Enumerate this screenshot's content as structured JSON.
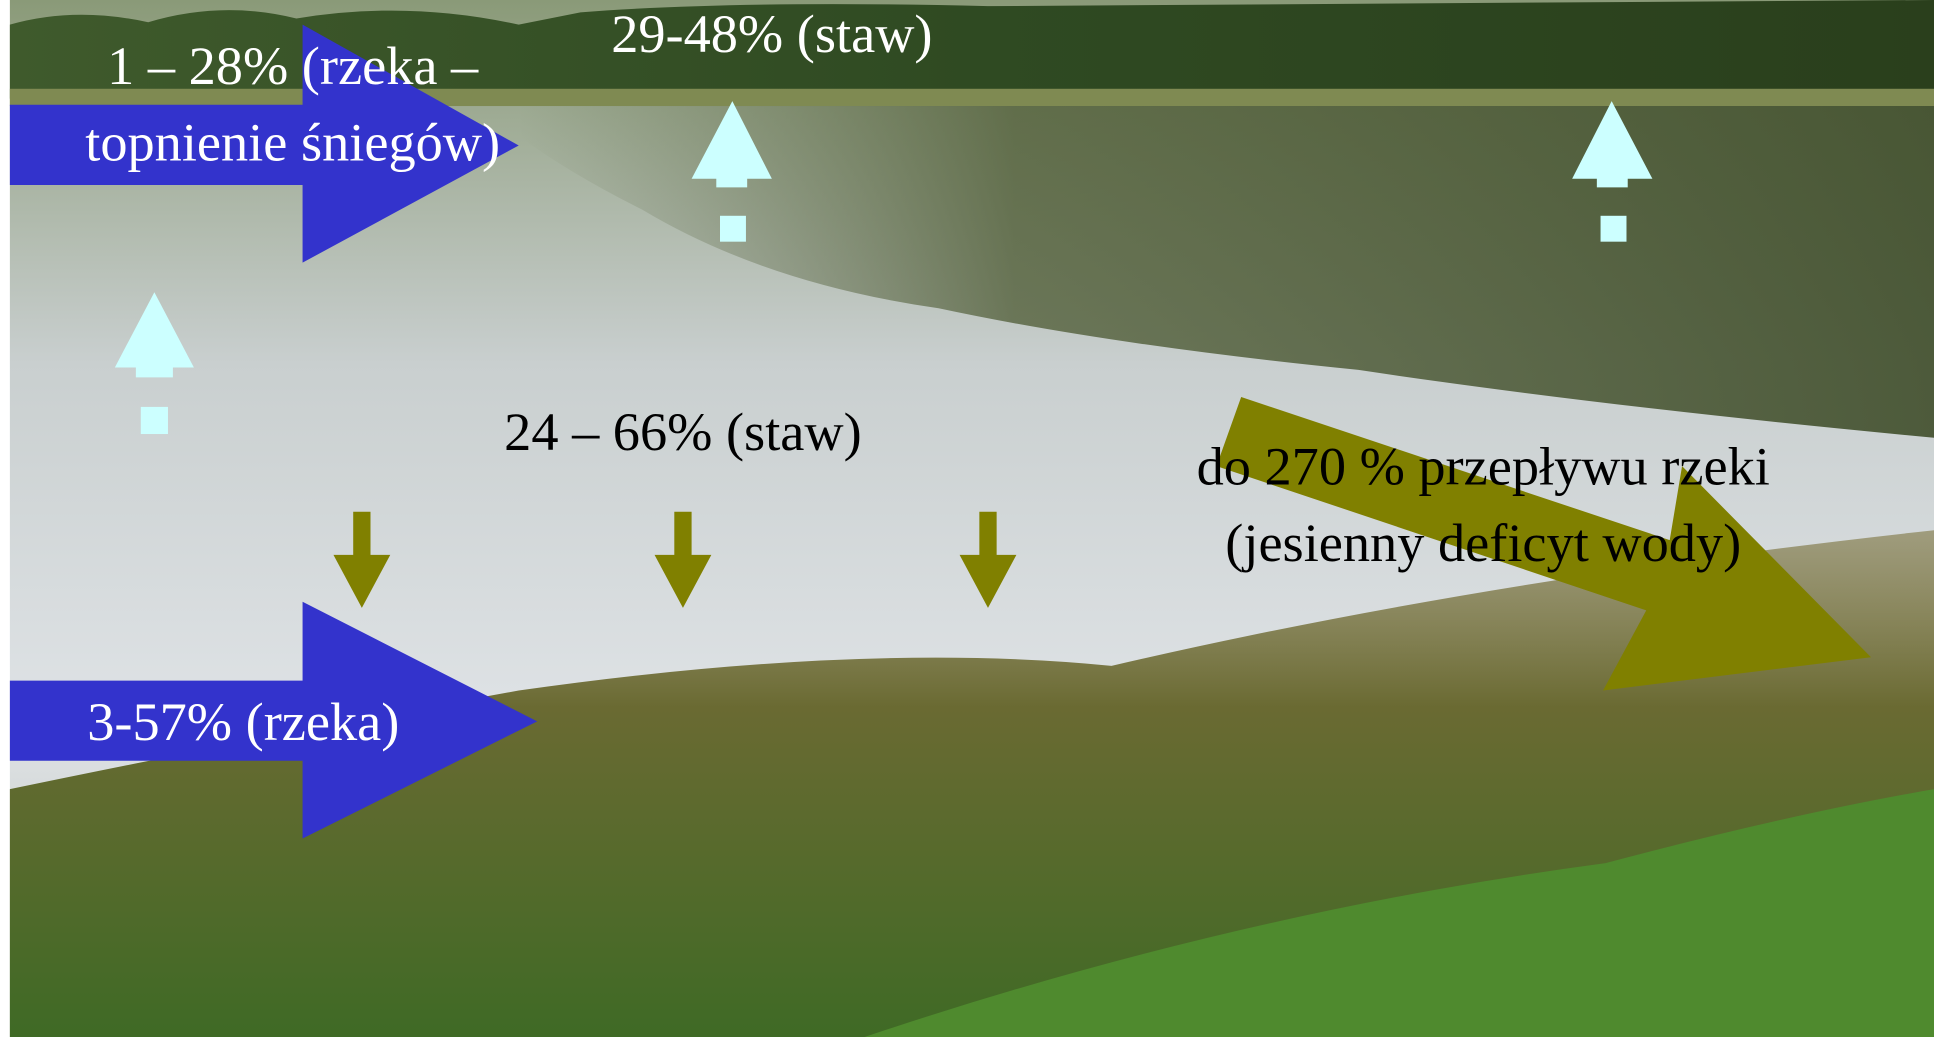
{
  "annotations": {
    "river_snowmelt": [
      "1 – 28% (rzeka –",
      "topnienie śniegów)"
    ],
    "pond_top": "29-48% (staw)",
    "pond_middle": "24 – 66% (staw)",
    "river_bottom": "3-57% (rzeka)",
    "outflow": [
      "do 270 % przepływu rzeki",
      "(jesienny deficyt wody)"
    ]
  }
}
